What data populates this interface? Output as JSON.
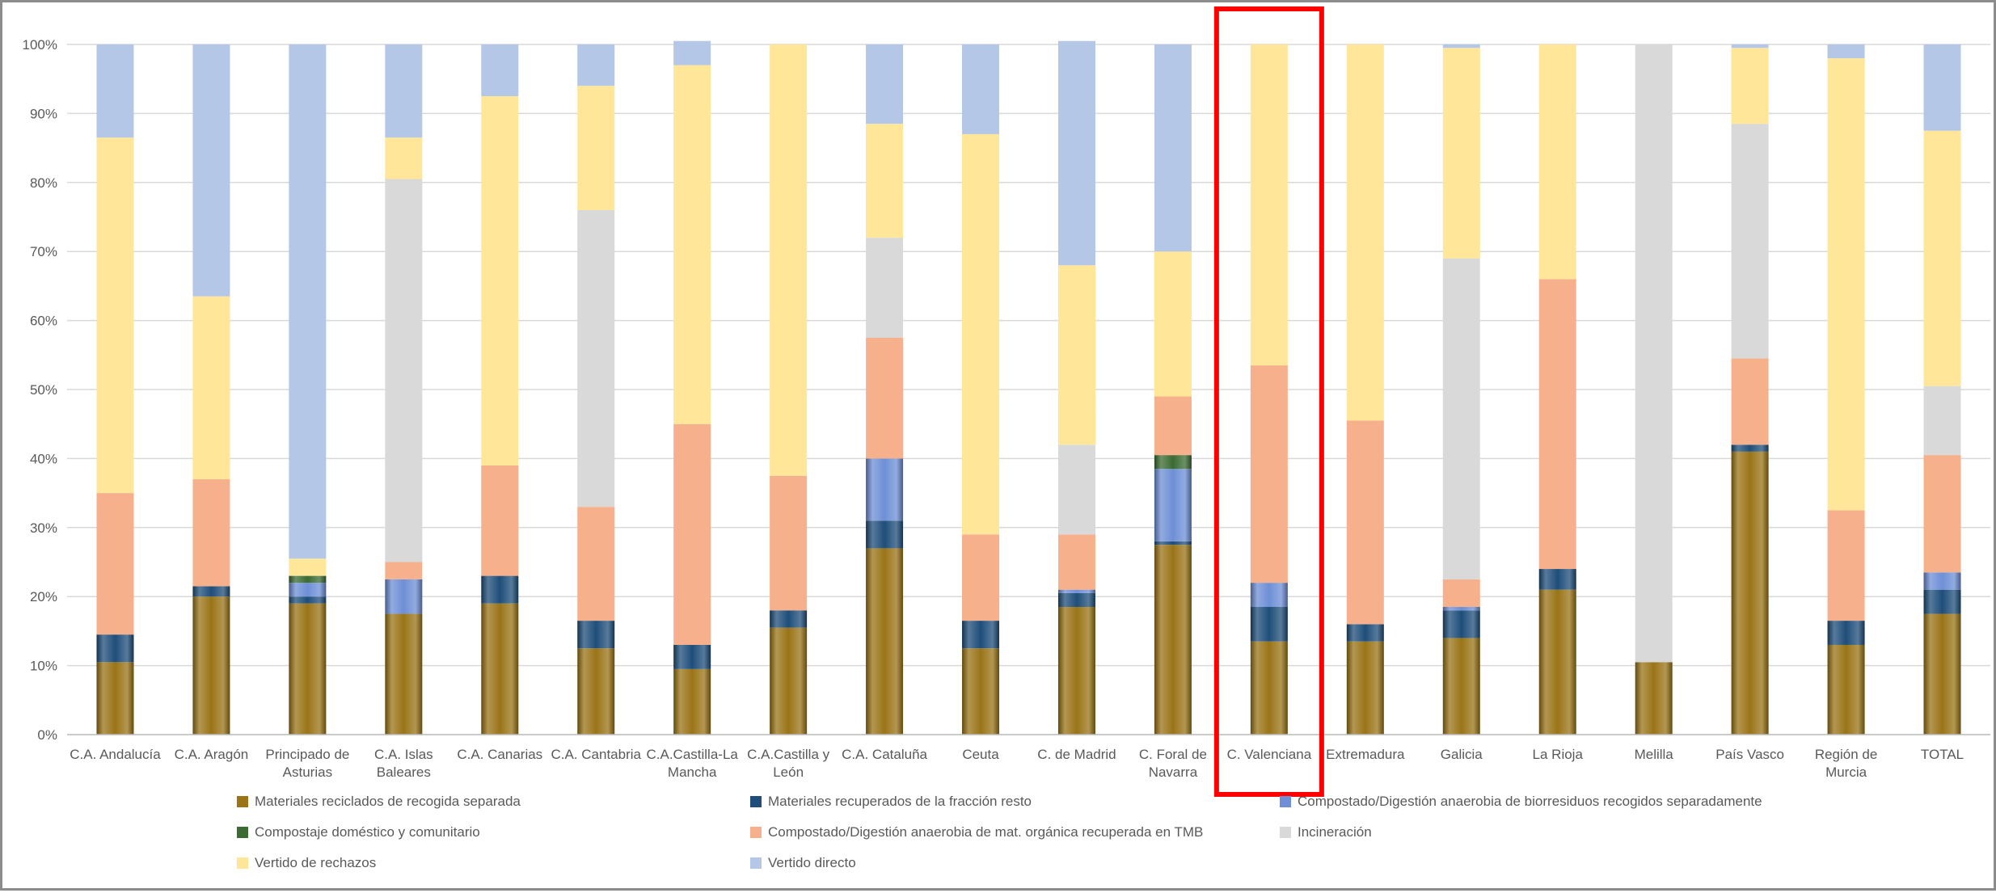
{
  "chart_data": {
    "type": "bar",
    "stacked": true,
    "percent": true,
    "ylim": [
      0,
      100
    ],
    "y_ticks": [
      "0%",
      "10%",
      "20%",
      "30%",
      "40%",
      "50%",
      "60%",
      "70%",
      "80%",
      "90%",
      "100%"
    ],
    "categories": [
      [
        "C.A. Andalucía"
      ],
      [
        "C.A. Aragón"
      ],
      [
        "Principado de",
        "Asturias"
      ],
      [
        "C.A. Islas",
        "Baleares"
      ],
      [
        "C.A. Canarias"
      ],
      [
        "C.A. Cantabria"
      ],
      [
        "C.A.Castilla-La",
        "Mancha"
      ],
      [
        "C.A.Castilla y",
        "León"
      ],
      [
        "C.A. Cataluña"
      ],
      [
        "Ceuta"
      ],
      [
        "C. de Madrid"
      ],
      [
        "C. Foral de",
        "Navarra"
      ],
      [
        "C. Valenciana"
      ],
      [
        "Extremadura"
      ],
      [
        "Galicia"
      ],
      [
        "La Rioja"
      ],
      [
        "Melilla"
      ],
      [
        "País Vasco"
      ],
      [
        "Región de",
        "Murcia"
      ],
      [
        "TOTAL"
      ]
    ],
    "series": [
      {
        "name": "Materiales reciclados de recogida separada",
        "color": "#9a7417",
        "values": [
          10.5,
          20,
          19,
          17.5,
          19,
          12.5,
          9.5,
          15.5,
          27,
          12.5,
          18.5,
          27.5,
          13.5,
          13.5,
          14,
          21,
          10.5,
          41,
          13,
          17.5
        ]
      },
      {
        "name": "Materiales recuperados de la fracción resto",
        "color": "#1f4e79",
        "values": [
          4,
          1.5,
          1,
          0,
          4,
          4,
          3.5,
          2.5,
          4,
          4,
          2,
          0.5,
          5,
          2.5,
          4,
          3,
          0,
          1,
          3.5,
          3.5
        ]
      },
      {
        "name": "Compostado/Digestión anaerobia de biorresiduos recogidos separadamente",
        "color": "#6e8fd6",
        "values": [
          0,
          0,
          2,
          5,
          0,
          0,
          0,
          0,
          9,
          0,
          0.5,
          10.5,
          3.5,
          0,
          0.5,
          0,
          0,
          0,
          0,
          2.5
        ]
      },
      {
        "name": "Compostaje doméstico y comunitario",
        "color": "#3b6b32",
        "values": [
          0,
          0,
          1,
          0,
          0,
          0,
          0,
          0,
          0,
          0,
          0,
          2,
          0,
          0,
          0,
          0,
          0,
          0,
          0,
          0
        ]
      },
      {
        "name": "Compostado/Digestión anaerobia de mat. orgánica recuperada en TMB",
        "color": "#f7b08c",
        "values": [
          20.5,
          15.5,
          0,
          2.5,
          16,
          16.5,
          32,
          19.5,
          17.5,
          12.5,
          8,
          8.5,
          31.5,
          29.5,
          4,
          42,
          0,
          12.5,
          16,
          17
        ]
      },
      {
        "name": "Incineración",
        "color": "#d9d9d9",
        "values": [
          0,
          0,
          0,
          55.5,
          0,
          43,
          0,
          0,
          14.5,
          0,
          13,
          0,
          0,
          0,
          46.5,
          0,
          89.5,
          34,
          0,
          10
        ]
      },
      {
        "name": "Vertido de rechazos",
        "color": "#ffe699",
        "values": [
          51.5,
          26.5,
          2.5,
          6,
          53.5,
          18,
          52,
          62.5,
          16.5,
          58,
          26,
          21,
          46.5,
          54.5,
          30.5,
          34,
          0,
          11,
          65.5,
          37
        ]
      },
      {
        "name": "Vertido directo",
        "color": "#b4c7e7",
        "values": [
          13.5,
          36.5,
          74.5,
          13.5,
          7.5,
          6,
          3.5,
          0,
          11.5,
          13,
          32.5,
          30,
          0,
          0,
          0.5,
          0,
          0,
          0.5,
          2,
          12.5
        ]
      }
    ],
    "highlight_category": "C. Valenciana",
    "highlight_color": "#ff0000",
    "grid": true,
    "legend_position": "bottom"
  }
}
